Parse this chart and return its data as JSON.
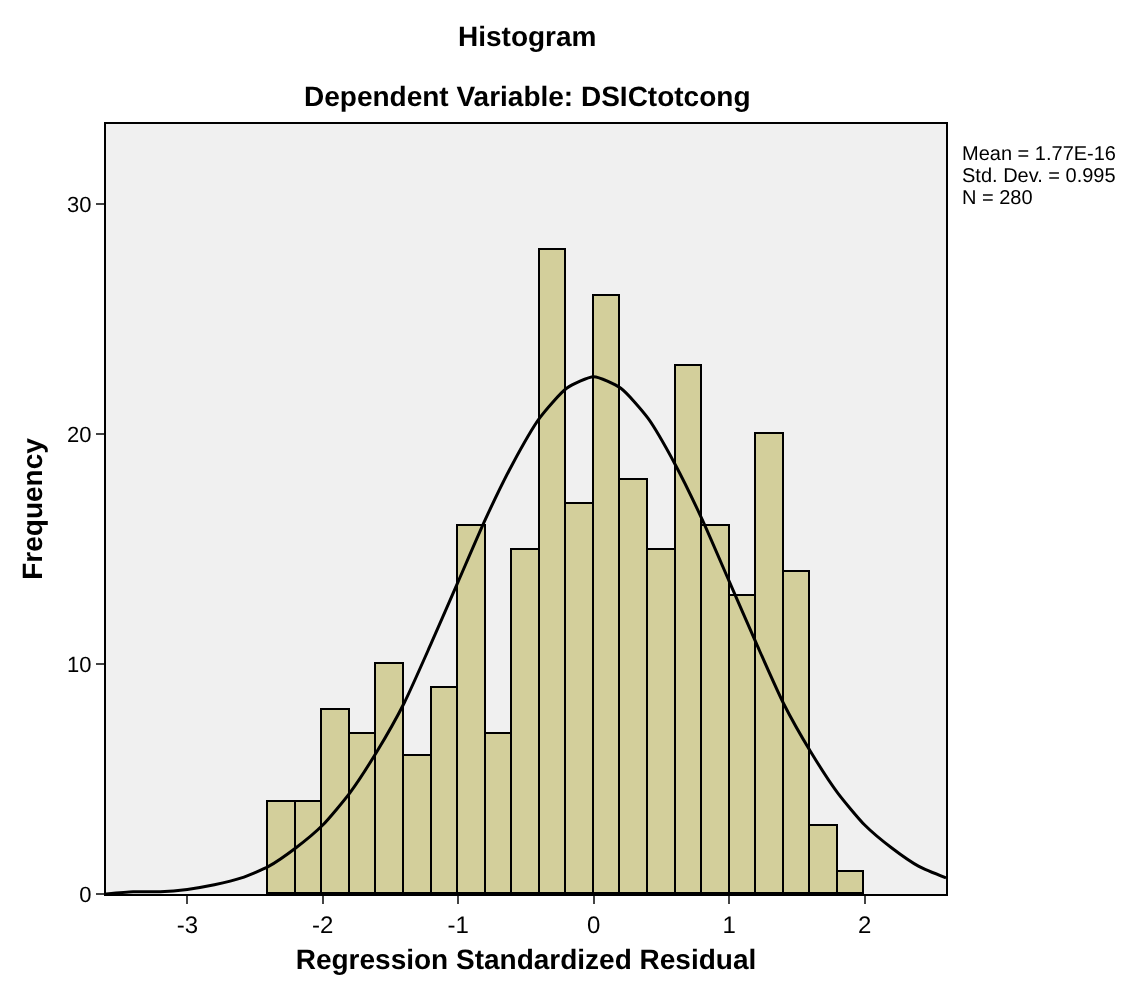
{
  "chart_data": {
    "type": "histogram",
    "title": "Histogram",
    "subtitle": "Dependent Variable: DSICtotcong",
    "xlabel": "Regression Standardized Residual",
    "ylabel": "Frequency",
    "bins": [
      -2.4,
      -2.2,
      -2.0,
      -1.8,
      -1.6,
      -1.4,
      -1.2,
      -1.0,
      -0.8,
      -0.6,
      -0.4,
      -0.2,
      0,
      0.2,
      0.4,
      0.6,
      0.8,
      1.0,
      1.2,
      1.4,
      1.6,
      1.8,
      2.0
    ],
    "values": [
      4,
      4,
      8,
      7,
      10,
      6,
      9,
      16,
      7,
      15,
      28,
      17,
      26,
      18,
      15,
      23,
      16,
      13,
      20,
      14,
      3,
      1
    ],
    "color": "#d3cf9b",
    "series": [
      {
        "type": "line",
        "color": "#000000",
        "x": [
          -3.6,
          -3.4,
          -3.2,
          -3.0,
          -2.8,
          -2.6,
          -2.4,
          -2.2,
          -2.0,
          -1.8,
          -1.6,
          -1.4,
          -1.2,
          -1.0,
          -0.8,
          -0.6,
          -0.4,
          -0.2,
          0,
          0.2,
          0.4,
          0.6,
          0.8,
          1.0,
          1.2,
          1.4,
          1.6,
          1.8,
          2.0,
          2.2,
          2.4,
          2.6
        ],
        "values": [
          0.0,
          0.1,
          0.1,
          0.2,
          0.4,
          0.7,
          1.2,
          2.0,
          3.0,
          4.4,
          6.2,
          8.3,
          10.9,
          13.6,
          16.3,
          18.7,
          20.7,
          22.0,
          22.5,
          22.0,
          20.7,
          18.7,
          16.3,
          13.6,
          10.9,
          8.3,
          6.2,
          4.4,
          3.0,
          2.0,
          1.2,
          0.7
        ]
      }
    ],
    "annotations": [
      "Mean = 1.77E-16",
      "Std. Dev. = 0.995",
      "N = 280"
    ],
    "xlim": [
      -3.6,
      2.6
    ],
    "xticks": [
      -3,
      -2,
      -1,
      0,
      1,
      2
    ],
    "ylim": [
      0,
      33.5
    ],
    "yticks": [
      0,
      10,
      20,
      30
    ],
    "grid": false
  }
}
